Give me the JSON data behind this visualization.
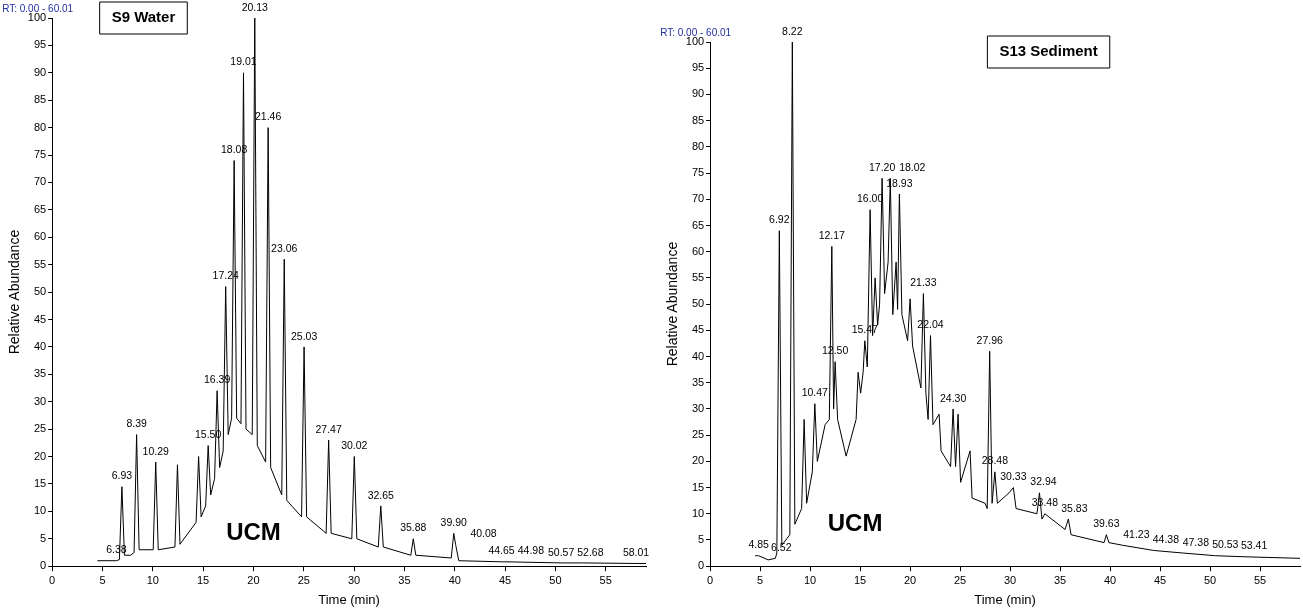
{
  "chart_data": [
    {
      "type": "line",
      "title": "S9 Water",
      "xlabel": "Time (min)",
      "ylabel": "Relative Abundance",
      "xlim": [
        0,
        59
      ],
      "xticks": [
        0,
        5,
        10,
        15,
        20,
        25,
        30,
        35,
        40,
        45,
        50,
        55
      ],
      "ylim": [
        0,
        100
      ],
      "yticks": [
        0,
        5,
        10,
        15,
        20,
        25,
        30,
        35,
        40,
        45,
        50,
        55,
        60,
        65,
        70,
        75,
        80,
        85,
        90,
        95,
        100
      ],
      "grid": false,
      "legend": false,
      "marker": "none",
      "line_style": "solid",
      "series": [
        {
          "color": "#000000",
          "x": [
            4.5,
            6.38,
            6.68,
            6.93,
            7.18,
            7.8,
            8.14,
            8.39,
            8.64,
            10.04,
            10.29,
            10.54,
            12.2,
            12.45,
            12.7,
            14.3,
            14.55,
            14.8,
            15.25,
            15.5,
            15.75,
            16.14,
            16.39,
            16.64,
            16.99,
            17.24,
            17.49,
            17.83,
            18.08,
            18.33,
            18.76,
            19.01,
            19.26,
            19.88,
            20.13,
            20.38,
            21.21,
            21.46,
            21.71,
            22.81,
            23.06,
            23.31,
            24.78,
            25.03,
            25.28,
            27.22,
            27.47,
            27.72,
            29.77,
            30.02,
            30.27,
            32.4,
            32.65,
            32.9,
            35.63,
            35.88,
            36.13,
            39.65,
            39.9,
            40.08,
            40.4,
            44.65,
            44.98,
            50.57,
            52.68,
            58.01,
            59
          ],
          "values": [
            1,
            1,
            1.2,
            14.5,
            2,
            2,
            2.5,
            24,
            3,
            3,
            19,
            3,
            3.5,
            18.5,
            4,
            8,
            20,
            9,
            11,
            22,
            13,
            16,
            32,
            18,
            21,
            51,
            24,
            27,
            74,
            27,
            26,
            90,
            25,
            24,
            100,
            22,
            19,
            80,
            18,
            13,
            56,
            12,
            9,
            40,
            9,
            6,
            23,
            6,
            5,
            20,
            5,
            3.5,
            11,
            3.5,
            2,
            5,
            2,
            1.5,
            6,
            4,
            1,
            0.8,
            0.8,
            0.6,
            0.6,
            0.5,
            0.5
          ]
        }
      ],
      "annotations": [
        "RT: 0.00 - 60.01",
        "UCM",
        {
          "text": "6.38",
          "x": 6.38,
          "y": 1
        },
        {
          "text": "6.93",
          "x": 6.93,
          "y": 14.5
        },
        {
          "text": "8.39",
          "x": 8.39,
          "y": 24
        },
        {
          "text": "10.29",
          "x": 10.29,
          "y": 19
        },
        {
          "text": "15.50",
          "x": 15.5,
          "y": 22
        },
        {
          "text": "16.39",
          "x": 16.39,
          "y": 32
        },
        {
          "text": "17.24",
          "x": 17.24,
          "y": 51
        },
        {
          "text": "18.08",
          "x": 18.08,
          "y": 74
        },
        {
          "text": "19.01",
          "x": 19.01,
          "y": 90
        },
        {
          "text": "20.13",
          "x": 20.13,
          "y": 100
        },
        {
          "text": "21.46",
          "x": 21.46,
          "y": 80
        },
        {
          "text": "23.06",
          "x": 23.06,
          "y": 56
        },
        {
          "text": "25.03",
          "x": 25.03,
          "y": 40
        },
        {
          "text": "27.47",
          "x": 27.47,
          "y": 23
        },
        {
          "text": "30.02",
          "x": 30.02,
          "y": 20
        },
        {
          "text": "32.65",
          "x": 32.65,
          "y": 11
        },
        {
          "text": "35.88",
          "x": 35.88,
          "y": 5
        },
        {
          "text": "39.90",
          "x": 39.9,
          "y": 6
        },
        {
          "text": "40.08",
          "x": 40.08,
          "y": 4
        },
        {
          "text": "44.65",
          "x": 44.65,
          "y": 0.8
        },
        {
          "text": "44.98",
          "x": 44.98,
          "y": 0.8
        },
        {
          "text": "50.57",
          "x": 50.57,
          "y": 0.6
        },
        {
          "text": "52.68",
          "x": 52.68,
          "y": 0.6
        },
        {
          "text": "58.01",
          "x": 58.01,
          "y": 0.5
        }
      ]
    },
    {
      "type": "line",
      "title": "S13 Sediment",
      "xlabel": "Time (min)",
      "ylabel": "Relative Abundance",
      "xlim": [
        0,
        59
      ],
      "xticks": [
        0,
        5,
        10,
        15,
        20,
        25,
        30,
        35,
        40,
        45,
        50,
        55
      ],
      "ylim": [
        0,
        100
      ],
      "yticks": [
        0,
        5,
        10,
        15,
        20,
        25,
        30,
        35,
        40,
        45,
        50,
        55,
        60,
        65,
        70,
        75,
        80,
        85,
        90,
        95,
        100
      ],
      "grid": false,
      "legend": false,
      "marker": "none",
      "line_style": "solid",
      "series": [
        {
          "color": "#000000",
          "x": [
            4.5,
            4.85,
            5.8,
            6.52,
            6.67,
            6.92,
            7.17,
            7.97,
            8.22,
            8.47,
            9.15,
            9.4,
            9.65,
            10.22,
            10.47,
            10.72,
            11.5,
            11.92,
            12.17,
            12.35,
            12.5,
            12.75,
            13.6,
            14.6,
            14.8,
            15.05,
            15.3,
            15.47,
            15.72,
            16.0,
            16.25,
            16.5,
            16.75,
            16.95,
            17.2,
            17.45,
            17.8,
            18.02,
            18.27,
            18.6,
            18.75,
            18.93,
            19.18,
            19.75,
            20.0,
            20.25,
            21.08,
            21.33,
            21.58,
            21.8,
            22.04,
            22.29,
            22.9,
            23.1,
            24.05,
            24.3,
            24.55,
            24.8,
            25.05,
            26.0,
            26.2,
            27.5,
            27.71,
            27.96,
            28.2,
            28.48,
            28.73,
            29.9,
            30.33,
            30.6,
            32.69,
            32.94,
            33.19,
            33.48,
            35.5,
            35.83,
            36.1,
            39.4,
            39.63,
            39.88,
            41.23,
            44.38,
            47.38,
            50.53,
            53.41,
            59
          ],
          "values": [
            2,
            2,
            1.2,
            1.5,
            2.5,
            64,
            4,
            6,
            100,
            8,
            11,
            28,
            12,
            18,
            31,
            20,
            27,
            28,
            61,
            30,
            39,
            28,
            21,
            28,
            37,
            33,
            37,
            43,
            38,
            68,
            44,
            55,
            46,
            50,
            74,
            52,
            58,
            74,
            48,
            58,
            49,
            71,
            48,
            43,
            51,
            42,
            34,
            52,
            33,
            28,
            44,
            27,
            29,
            22,
            19,
            30,
            19,
            29,
            16,
            22,
            13,
            12,
            11,
            41,
            12,
            18,
            12,
            14,
            15,
            11,
            10,
            14,
            9,
            10,
            7,
            9,
            6,
            4.5,
            6,
            4.5,
            4,
            3,
            2.5,
            2,
            1.8,
            1.5
          ]
        }
      ],
      "annotations": [
        "RT: 0.00 - 60.01",
        "UCM",
        {
          "text": "4.85",
          "x": 4.85,
          "y": 2
        },
        {
          "text": "6.52",
          "x": 6.52,
          "y": 1.5
        },
        {
          "text": "6.92",
          "x": 6.92,
          "y": 64
        },
        {
          "text": "8.22",
          "x": 8.22,
          "y": 100
        },
        {
          "text": "10.47",
          "x": 10.47,
          "y": 31
        },
        {
          "text": "12.17",
          "x": 12.17,
          "y": 61
        },
        {
          "text": "12.50",
          "x": 12.5,
          "y": 39
        },
        {
          "text": "15.47",
          "x": 15.47,
          "y": 43
        },
        {
          "text": "16.00",
          "x": 16.0,
          "y": 68
        },
        {
          "text": "17.20",
          "x": 17.2,
          "y": 74
        },
        {
          "text": "18.02",
          "x": 18.02,
          "y": 74
        },
        {
          "text": "18.93",
          "x": 18.93,
          "y": 71
        },
        {
          "text": "21.33",
          "x": 21.33,
          "y": 52
        },
        {
          "text": "22.04",
          "x": 22.04,
          "y": 44
        },
        {
          "text": "24.30",
          "x": 24.3,
          "y": 30
        },
        {
          "text": "27.96",
          "x": 27.96,
          "y": 41
        },
        {
          "text": "28.48",
          "x": 28.48,
          "y": 18
        },
        {
          "text": "30.33",
          "x": 30.33,
          "y": 15
        },
        {
          "text": "32.94",
          "x": 32.94,
          "y": 14
        },
        {
          "text": "33.48",
          "x": 33.48,
          "y": 10
        },
        {
          "text": "35.83",
          "x": 35.83,
          "y": 9
        },
        {
          "text": "39.63",
          "x": 39.63,
          "y": 6
        },
        {
          "text": "41.23",
          "x": 41.23,
          "y": 4
        },
        {
          "text": "44.38",
          "x": 44.38,
          "y": 3
        },
        {
          "text": "47.38",
          "x": 47.38,
          "y": 2.5
        },
        {
          "text": "50.53",
          "x": 50.53,
          "y": 2
        },
        {
          "text": "53.41",
          "x": 53.41,
          "y": 1.8
        }
      ]
    }
  ]
}
